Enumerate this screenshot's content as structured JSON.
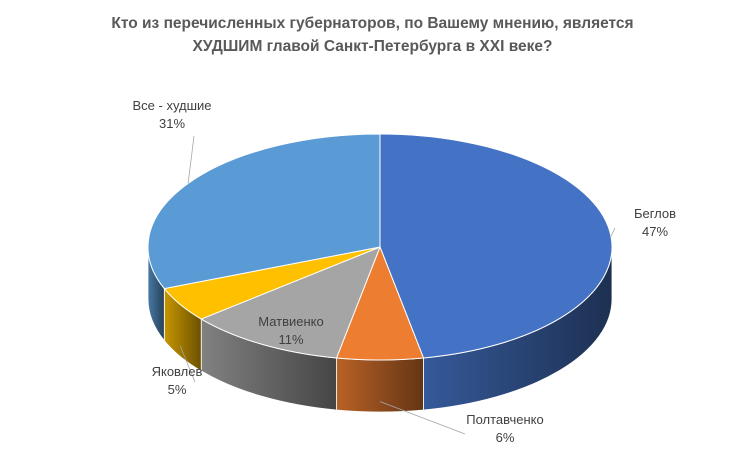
{
  "chart_data": {
    "type": "pie",
    "title_lines": [
      "Кто из перечисленных губернаторов, по Вашему мнению, является",
      "ХУДШИМ главой Санкт-Петербурга в XXI веке?"
    ],
    "slices": [
      {
        "name": "Беглов",
        "value": 47,
        "value_label": "47%",
        "color": "#4472C4"
      },
      {
        "name": "Полтавченко",
        "value": 6,
        "value_label": "6%",
        "color": "#ED7D31"
      },
      {
        "name": "Матвиенко",
        "value": 11,
        "value_label": "11%",
        "color": "#A5A5A5"
      },
      {
        "name": "Яковлев",
        "value": 5,
        "value_label": "5%",
        "color": "#FFC000"
      },
      {
        "name": "Все - худшие",
        "value": 31,
        "value_label": "31%",
        "color": "#5B9BD5"
      }
    ],
    "style": "3d-pie",
    "legend": "none"
  }
}
